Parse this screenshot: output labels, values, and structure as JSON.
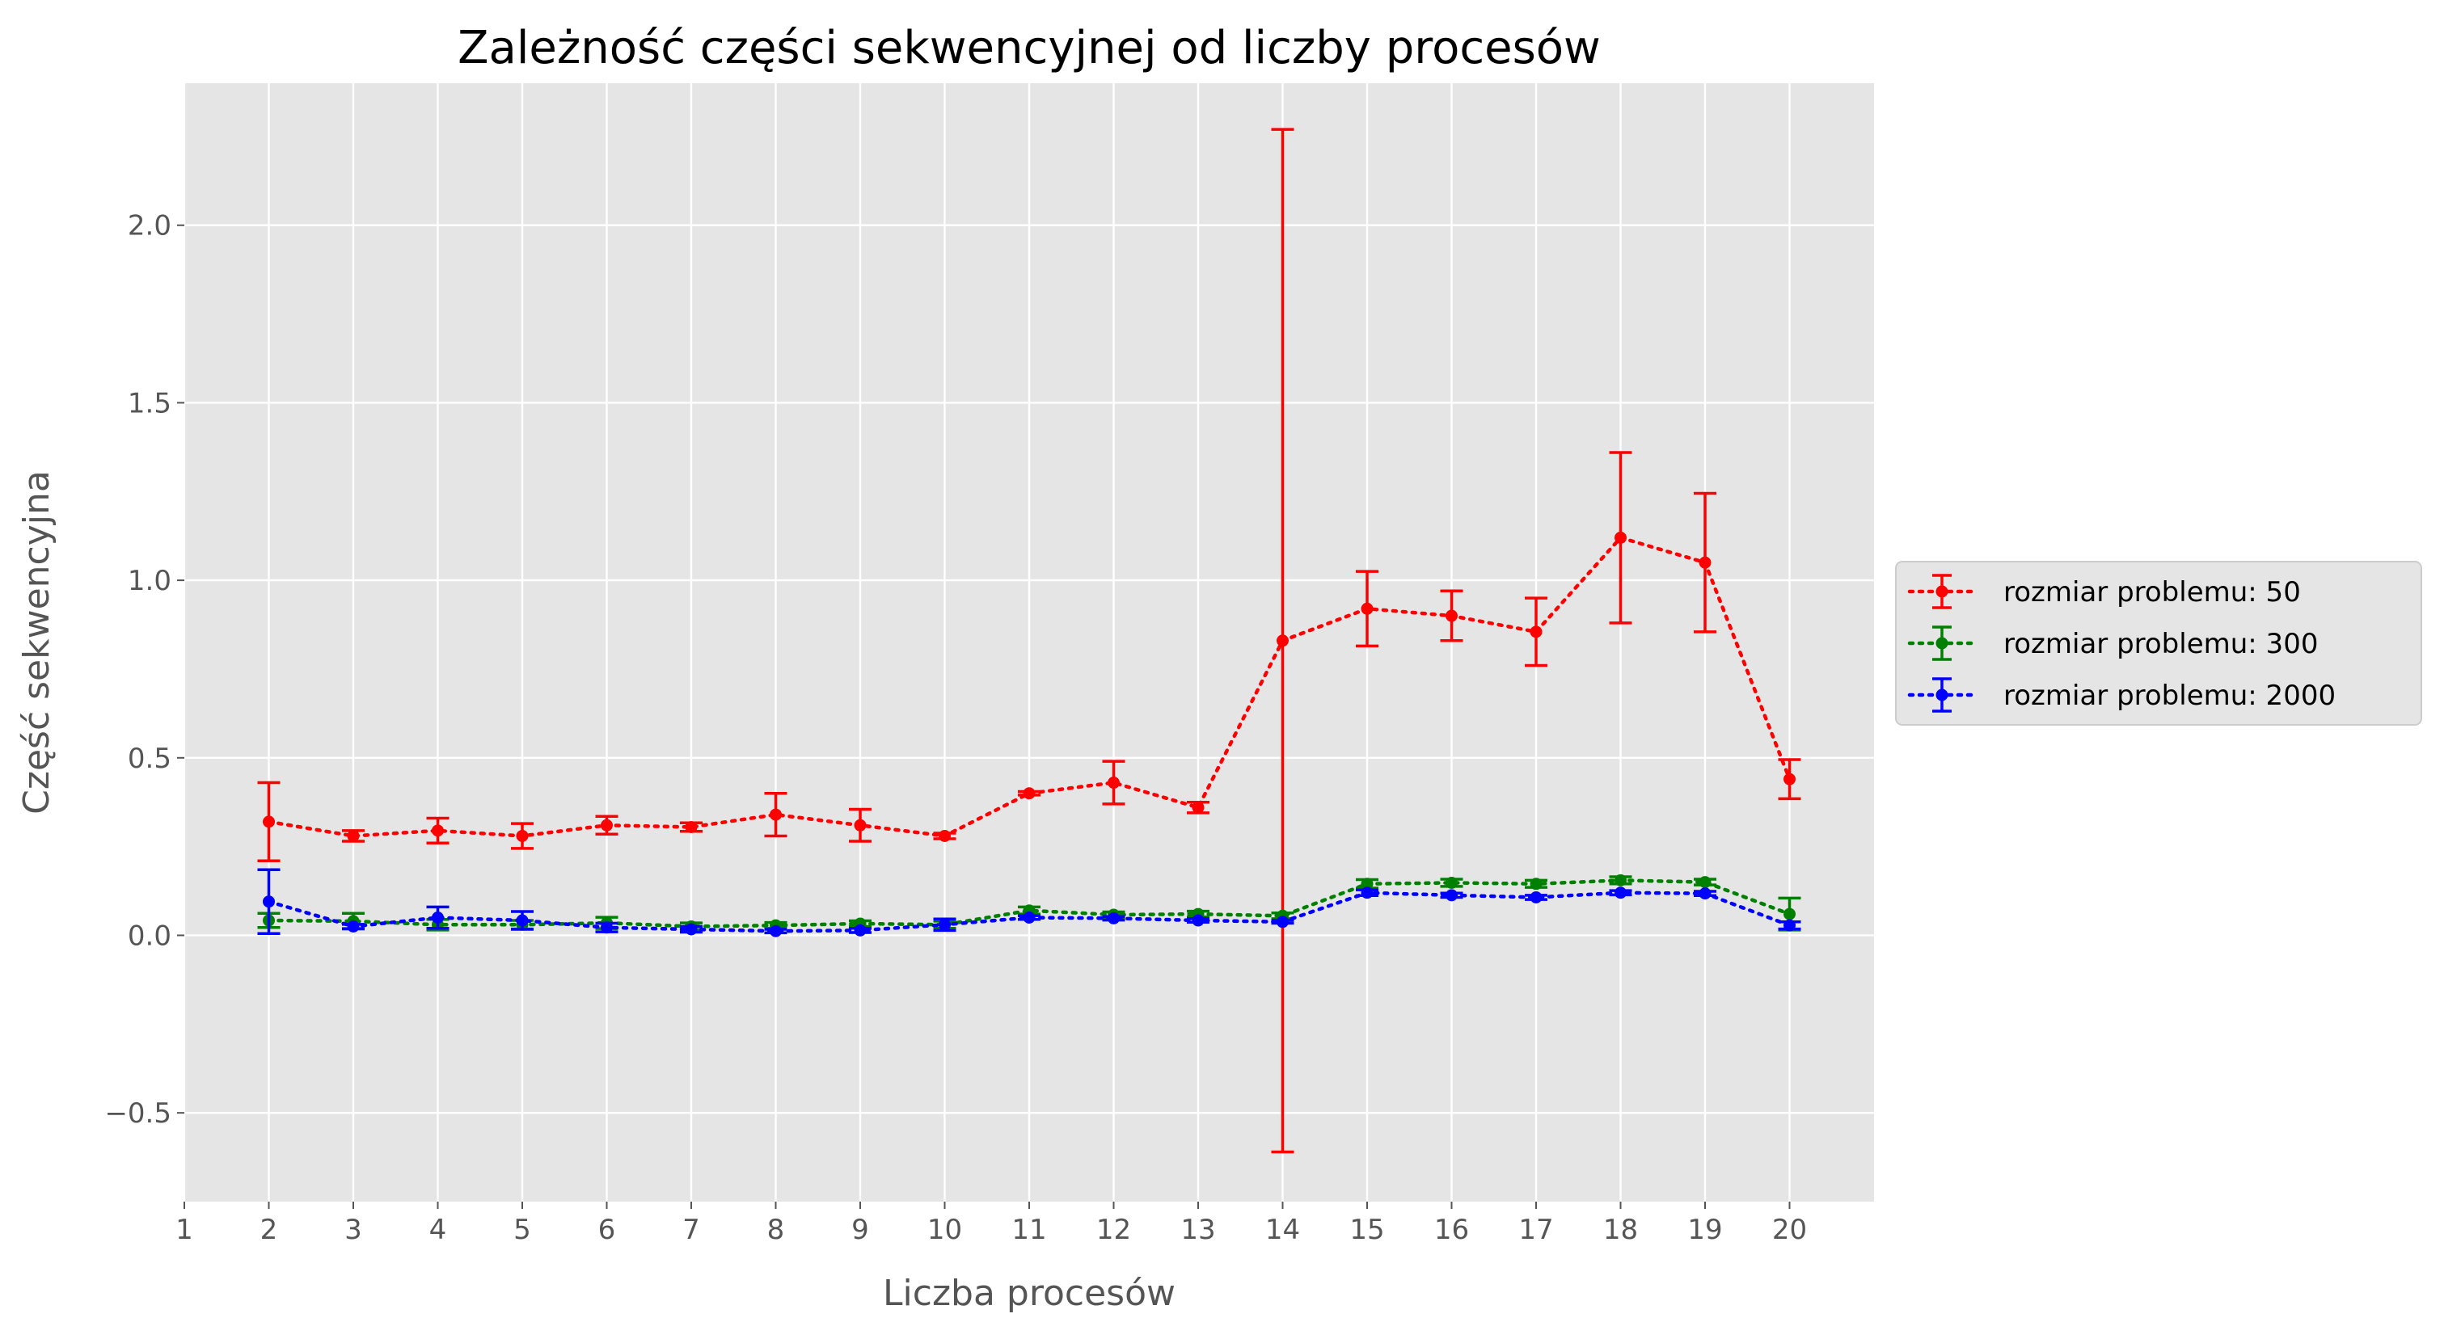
{
  "chart_data": {
    "type": "line",
    "title": "Zależność części sekwencyjnej od liczby procesów",
    "xlabel": "Liczba procesów",
    "ylabel": "Część sekwencyjna",
    "xlim": [
      1,
      21
    ],
    "ylim": [
      -0.75,
      2.4
    ],
    "x_ticks": [
      1,
      2,
      3,
      4,
      5,
      6,
      7,
      8,
      9,
      10,
      11,
      12,
      13,
      14,
      15,
      16,
      17,
      18,
      19,
      20
    ],
    "y_ticks": [
      -0.5,
      0.0,
      0.5,
      1.0,
      1.5,
      2.0
    ],
    "y_tick_labels": [
      "−0.5",
      "0.0",
      "0.5",
      "1.0",
      "1.5",
      "2.0"
    ],
    "grid": true,
    "style": "ggplot",
    "legend_position": "right",
    "series": [
      {
        "name": "rozmiar problemu: 50",
        "color": "#ff0000",
        "x": [
          2,
          3,
          4,
          5,
          6,
          7,
          8,
          9,
          10,
          11,
          12,
          13,
          14,
          15,
          16,
          17,
          18,
          19,
          20
        ],
        "y": [
          0.32,
          0.28,
          0.295,
          0.28,
          0.31,
          0.305,
          0.34,
          0.31,
          0.28,
          0.4,
          0.43,
          0.36,
          0.83,
          0.92,
          0.9,
          0.855,
          1.12,
          1.05,
          0.44
        ],
        "err": [
          0.11,
          0.015,
          0.035,
          0.035,
          0.025,
          0.012,
          0.06,
          0.045,
          0.008,
          0.005,
          0.06,
          0.015,
          1.44,
          0.105,
          0.07,
          0.095,
          0.24,
          0.195,
          0.055
        ]
      },
      {
        "name": "rozmiar problemu: 300",
        "color": "#008000",
        "x": [
          2,
          3,
          4,
          5,
          6,
          7,
          8,
          9,
          10,
          11,
          12,
          13,
          14,
          15,
          16,
          17,
          18,
          19,
          20
        ],
        "y": [
          0.042,
          0.04,
          0.03,
          0.03,
          0.035,
          0.025,
          0.028,
          0.033,
          0.03,
          0.07,
          0.058,
          0.06,
          0.055,
          0.145,
          0.148,
          0.145,
          0.155,
          0.15,
          0.06
        ],
        "err": [
          0.02,
          0.022,
          0.015,
          0.012,
          0.016,
          0.01,
          0.008,
          0.008,
          0.01,
          0.01,
          0.008,
          0.008,
          0.008,
          0.012,
          0.01,
          0.01,
          0.01,
          0.008,
          0.045
        ]
      },
      {
        "name": "rozmiar problemu: 2000",
        "color": "#0000ff",
        "x": [
          2,
          3,
          4,
          5,
          6,
          7,
          8,
          9,
          10,
          11,
          12,
          13,
          14,
          15,
          16,
          17,
          18,
          19,
          20
        ],
        "y": [
          0.095,
          0.025,
          0.05,
          0.042,
          0.022,
          0.017,
          0.012,
          0.014,
          0.03,
          0.05,
          0.048,
          0.042,
          0.038,
          0.12,
          0.113,
          0.107,
          0.12,
          0.118,
          0.028
        ],
        "err": [
          0.09,
          0.006,
          0.03,
          0.025,
          0.012,
          0.008,
          0.005,
          0.006,
          0.016,
          0.005,
          0.005,
          0.005,
          0.004,
          0.008,
          0.006,
          0.006,
          0.006,
          0.006,
          0.01
        ]
      }
    ]
  }
}
